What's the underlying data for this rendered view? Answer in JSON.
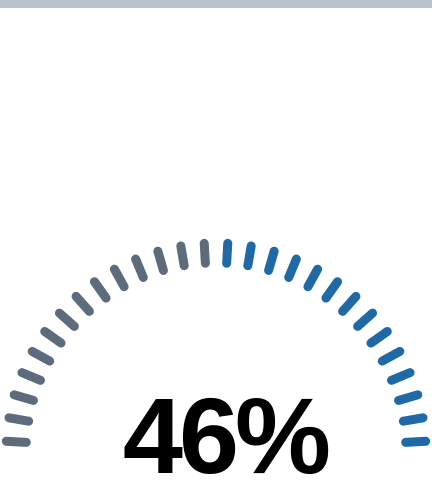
{
  "header_bar": {
    "color": "#b8c2cd"
  },
  "gauge": {
    "value_text": "46%",
    "level_percent": 46,
    "filled_color": "#1f6aa6",
    "unfilled_color": "#5d6b7d",
    "value_color": "#000000"
  }
}
